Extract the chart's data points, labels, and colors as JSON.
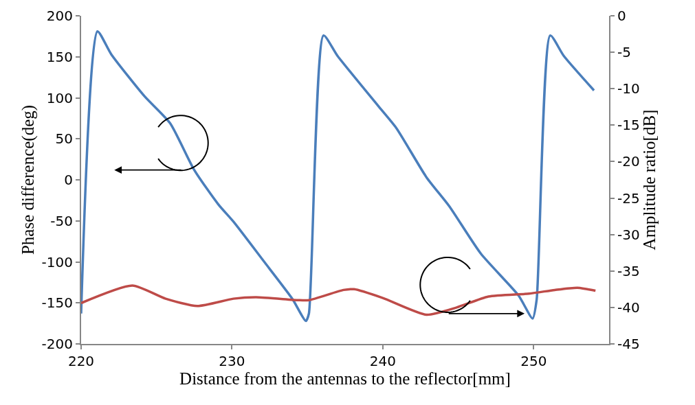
{
  "chart_data": {
    "type": "line",
    "xlabel": "Distance from the antennas to the reflector[mm]",
    "ylabel": "Phase difference(deg)",
    "y2label": "Amplitude ratio[dB]",
    "xlim": [
      220,
      255
    ],
    "xticks": [
      220,
      230,
      240,
      250
    ],
    "ylim": [
      -200,
      200
    ],
    "yticks": [
      -200,
      -150,
      -100,
      -50,
      0,
      50,
      100,
      150,
      200
    ],
    "y2lim": [
      -45,
      0
    ],
    "y2ticks": [
      -45,
      -40,
      -35,
      -30,
      -25,
      -20,
      -15,
      -10,
      -5,
      0
    ],
    "marker": "none",
    "line_style": "solid",
    "series": [
      {
        "color": "#4a7ebb",
        "x": [
          220,
          221.08,
          222.0,
          224.2,
          225.9,
          227.5,
          229.1,
          230.1,
          232.1,
          234.0,
          234.9,
          235.1,
          236.07,
          237.0,
          239.7,
          240.9,
          242.9,
          244.4,
          246.5,
          249.0,
          249.93,
          250.2,
          251.1,
          252.0,
          254.0
        ],
        "values": [
          -163,
          181,
          153,
          102,
          69,
          12,
          -30,
          -51,
          -99,
          -145,
          -172,
          -163,
          176,
          151,
          90,
          63,
          3,
          -32,
          -90,
          -141,
          -169,
          -146,
          176,
          151,
          109
        ]
      },
      {
        "color": "#be4b48",
        "axis": "y2",
        "x": [
          220,
          223.4,
          225.6,
          227.7,
          230.1,
          231.6,
          234.4,
          235.1,
          237.4,
          238.1,
          240,
          242.9,
          244.9,
          247.0,
          249.7,
          251.4,
          252.9,
          254.1
        ],
        "values": [
          -39.4,
          -37.0,
          -38.8,
          -39.8,
          -38.8,
          -38.6,
          -39.0,
          -39.0,
          -37.6,
          -37.5,
          -38.7,
          -41.0,
          -40.0,
          -38.5,
          -38.1,
          -37.6,
          -37.3,
          -37.7
        ]
      }
    ]
  }
}
